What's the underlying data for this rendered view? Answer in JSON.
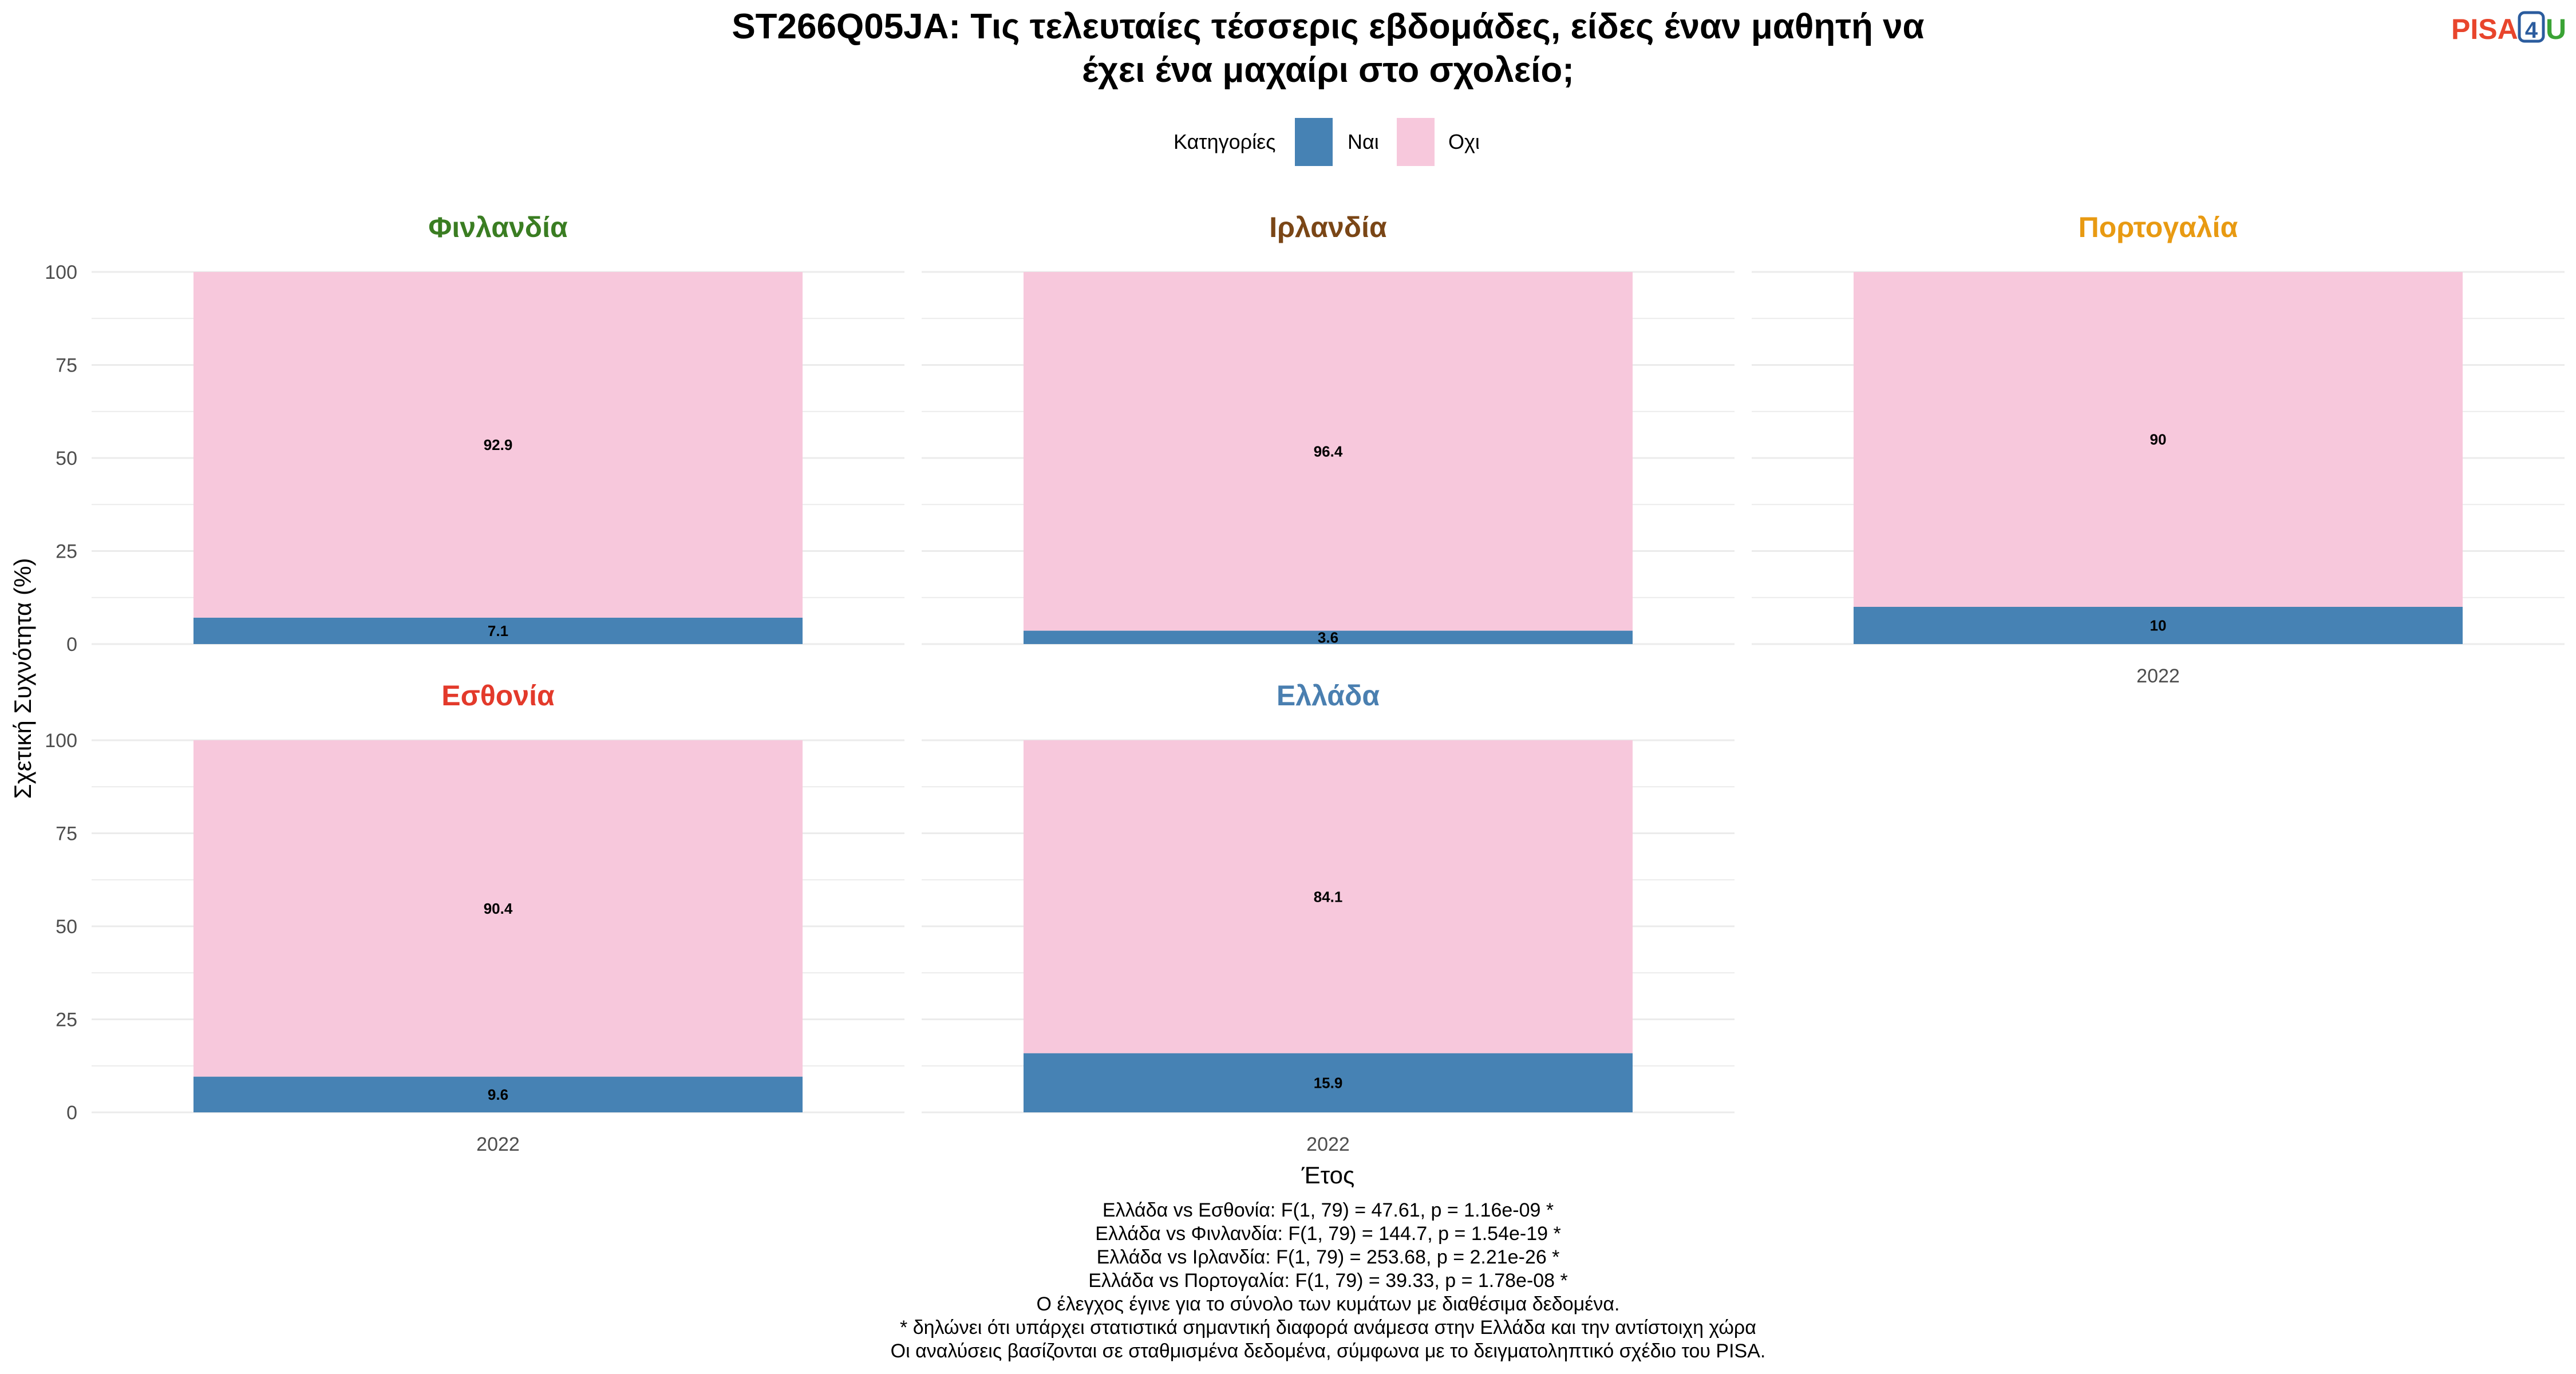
{
  "title": [
    "ST266Q05JA: Τις τελευταίες τέσσερις εβδομάδες, είδες έναν μαθητή να",
    "έχει ένα μαχαίρι στο σχολείο;"
  ],
  "logo": {
    "part1": "PISA",
    "part2": "4",
    "part3": "U",
    "color1": "#e8452c",
    "color2": "#2b5c9e",
    "color3": "#3aa335"
  },
  "legend": {
    "title": "Κατηγορίες",
    "items": [
      {
        "label": "Ναι",
        "color": "#4682b4"
      },
      {
        "label": "Οχι",
        "color": "#f7c8dc"
      }
    ]
  },
  "chart_data": {
    "type": "bar",
    "stacked": true,
    "xlabel": "Έτος",
    "ylabel": "Σχετική Συχνότητα (%)",
    "ylim": [
      0,
      100
    ],
    "yticks": [
      0,
      25,
      50,
      75,
      100
    ],
    "grid": true,
    "categories": [
      "2022"
    ],
    "panels": [
      {
        "name": "Φινλανδία",
        "color": "#3a7d22",
        "series": [
          {
            "name": "Ναι",
            "values": [
              7.1
            ]
          },
          {
            "name": "Οχι",
            "values": [
              92.9
            ]
          }
        ]
      },
      {
        "name": "Ιρλανδία",
        "color": "#7a4616",
        "series": [
          {
            "name": "Ναι",
            "values": [
              3.6
            ]
          },
          {
            "name": "Οχι",
            "values": [
              96.4
            ]
          }
        ]
      },
      {
        "name": "Πορτογαλία",
        "color": "#e89a12",
        "series": [
          {
            "name": "Ναι",
            "values": [
              10
            ]
          },
          {
            "name": "Οχι",
            "values": [
              90
            ]
          }
        ]
      },
      {
        "name": "Εσθονία",
        "color": "#e33a2b",
        "series": [
          {
            "name": "Ναι",
            "values": [
              9.6
            ]
          },
          {
            "name": "Οχι",
            "values": [
              90.4
            ]
          }
        ]
      },
      {
        "name": "Ελλάδα",
        "color": "#4a7fb0",
        "series": [
          {
            "name": "Ναι",
            "values": [
              15.9
            ]
          },
          {
            "name": "Οχι",
            "values": [
              84.1
            ]
          }
        ]
      }
    ]
  },
  "caption": [
    "Ελλάδα vs Εσθονία: F(1, 79) = 47.61, p = 1.16e-09 *",
    "Ελλάδα vs Φινλανδία: F(1, 79) = 144.7, p = 1.54e-19 *",
    "Ελλάδα vs Ιρλανδία: F(1, 79) = 253.68, p = 2.21e-26 *",
    "Ελλάδα vs Πορτογαλία: F(1, 79) = 39.33, p = 1.78e-08 *",
    "Ο έλεγχος έγινε για το σύνολο των κυμάτων με διαθέσιμα δεδομένα.",
    "* δηλώνει ότι υπάρχει στατιστικά σημαντική διαφορά ανάμεσα στην Ελλάδα και την αντίστοιχη χώρα",
    "Οι αναλύσεις βασίζονται σε σταθμισμένα δεδομένα, σύμφωνα με το δειγματοληπτικό σχέδιο του PISA."
  ]
}
